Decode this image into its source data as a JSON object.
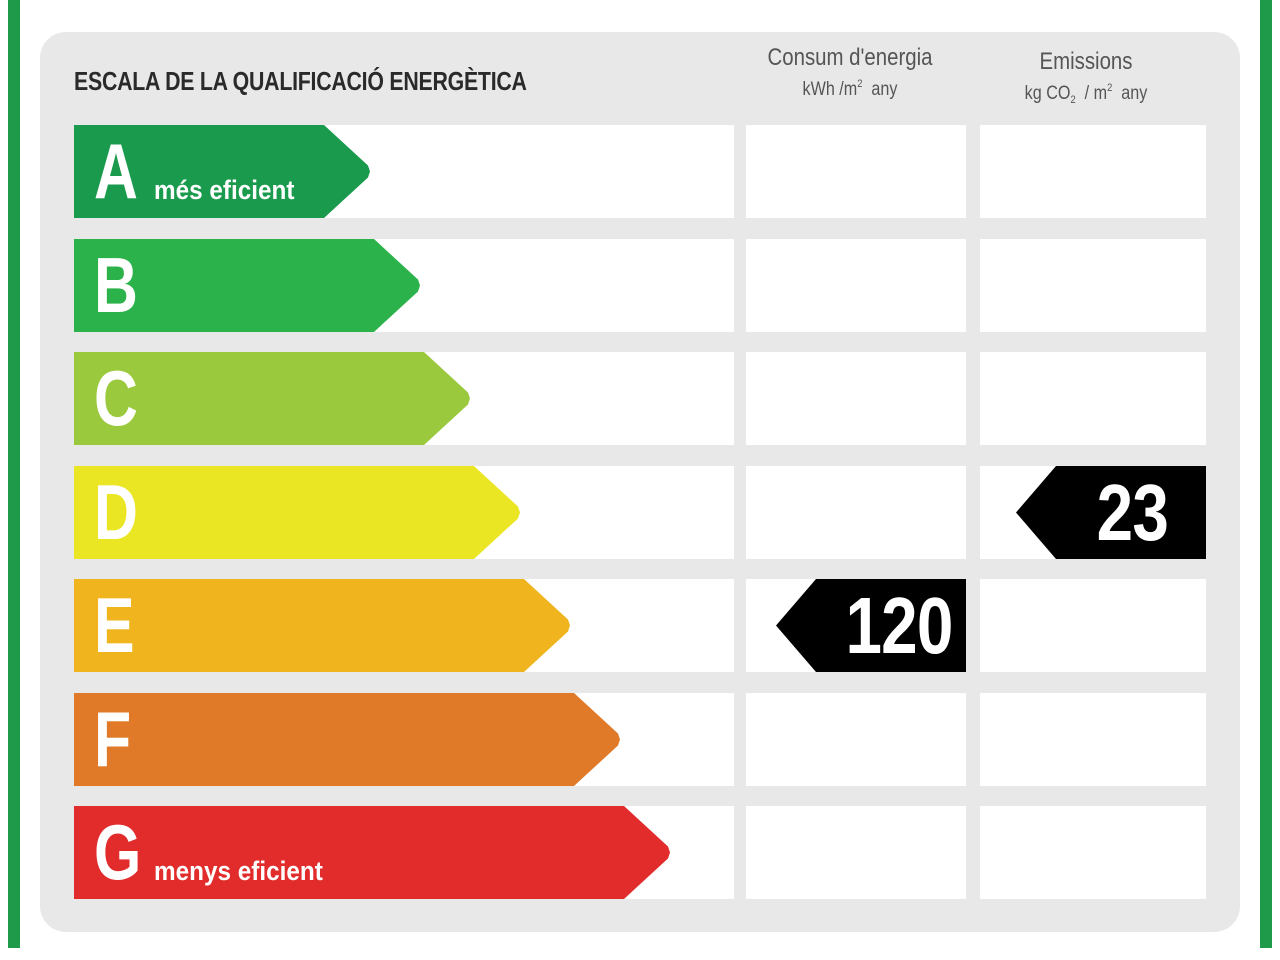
{
  "title": "ESCALA DE LA QUALIFICACIÓ ENERGÈTICA",
  "columns": {
    "consum": {
      "label": "Consum d'energia",
      "unit_prefix": "kWh /m",
      "unit_exp": "2",
      "unit_suffix": "any"
    },
    "emissions": {
      "label": "Emissions",
      "unit_prefix": "kg CO",
      "unit_sub": "2",
      "unit_mid": "/ m",
      "unit_exp": "2",
      "unit_suffix": "any"
    }
  },
  "scale": [
    {
      "letter": "A",
      "desc": "més eficient",
      "color": "#1a9a4c"
    },
    {
      "letter": "B",
      "desc": "",
      "color": "#2bb24a"
    },
    {
      "letter": "C",
      "desc": "",
      "color": "#9ac93d"
    },
    {
      "letter": "D",
      "desc": "",
      "color": "#ebe624"
    },
    {
      "letter": "E",
      "desc": "",
      "color": "#f0b51e"
    },
    {
      "letter": "F",
      "desc": "",
      "color": "#e07a28"
    },
    {
      "letter": "G",
      "desc": "menys eficient",
      "color": "#e22b2b"
    }
  ],
  "rating": {
    "consum": {
      "value": "120",
      "class": "E"
    },
    "emissions": {
      "value": "23",
      "class": "D"
    }
  },
  "colors": {
    "frame_green": "#1f9a4a",
    "panel": "#e8e8e8",
    "marker": "#000000"
  }
}
